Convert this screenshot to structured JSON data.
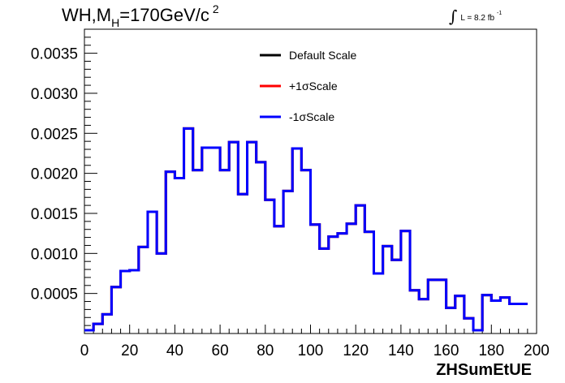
{
  "chart_data": {
    "type": "line",
    "title_main": "WH,M",
    "title_sub": "H",
    "title_rest": "=170GeV/c",
    "title_sup": "2",
    "lumi_prefix": "L = 8.2 fb",
    "lumi_sup": "-1",
    "xlabel": "ZHSumEtUE",
    "xlim": [
      0,
      200
    ],
    "ylim": [
      0,
      0.0038
    ],
    "x_ticks": [
      0,
      20,
      40,
      60,
      80,
      100,
      120,
      140,
      160,
      180,
      200
    ],
    "y_ticks": [
      0.0005,
      0.001,
      0.0015,
      0.002,
      0.0025,
      0.003,
      0.0035
    ],
    "x_tick_labels": [
      "0",
      "20",
      "40",
      "60",
      "80",
      "100",
      "120",
      "140",
      "160",
      "180",
      "200"
    ],
    "y_tick_labels": [
      "0.0005",
      "0.0010",
      "0.0015",
      "0.0020",
      "0.0025",
      "0.0030",
      "0.0035"
    ],
    "bin_width": 4,
    "bin_edges_start": 0,
    "series": [
      {
        "name": "Default Scale",
        "color": "#000000",
        "values": [
          4e-05,
          0.00012,
          0.00024,
          0.00058,
          0.00078,
          0.00079,
          0.00108,
          0.00152,
          0.001,
          0.00202,
          0.00194,
          0.00256,
          0.00204,
          0.00232,
          0.00232,
          0.00204,
          0.00239,
          0.00174,
          0.00239,
          0.00214,
          0.00167,
          0.00134,
          0.00178,
          0.00231,
          0.00204,
          0.00136,
          0.00106,
          0.00121,
          0.00125,
          0.00137,
          0.0016,
          0.00127,
          0.00075,
          0.00109,
          0.00092,
          0.00128,
          0.00054,
          0.00043,
          0.00067,
          0.00067,
          0.00032,
          0.00047,
          0.00019,
          4e-05,
          0.00048,
          0.00041,
          0.00045,
          0.00037,
          0.00037
        ]
      },
      {
        "name": "+1σScale",
        "color": "#ff0000",
        "values": [
          4e-05,
          0.00012,
          0.00024,
          0.00058,
          0.00078,
          0.00079,
          0.00108,
          0.00152,
          0.001,
          0.00202,
          0.00194,
          0.00256,
          0.00204,
          0.00232,
          0.00232,
          0.00204,
          0.00239,
          0.00174,
          0.00239,
          0.00214,
          0.00167,
          0.00134,
          0.00178,
          0.00231,
          0.00204,
          0.00136,
          0.00106,
          0.00121,
          0.00125,
          0.00137,
          0.0016,
          0.00127,
          0.00075,
          0.00109,
          0.00092,
          0.00128,
          0.00054,
          0.00043,
          0.00067,
          0.00067,
          0.00032,
          0.00047,
          0.00019,
          4e-05,
          0.00048,
          0.00041,
          0.00045,
          0.00037,
          0.00037
        ]
      },
      {
        "name": "-1σScale",
        "color": "#0000ff",
        "values": [
          4e-05,
          0.00012,
          0.00024,
          0.00058,
          0.00078,
          0.00079,
          0.00108,
          0.00152,
          0.001,
          0.00202,
          0.00194,
          0.00256,
          0.00204,
          0.00232,
          0.00232,
          0.00204,
          0.00239,
          0.00174,
          0.00239,
          0.00214,
          0.00167,
          0.00134,
          0.00178,
          0.00231,
          0.00204,
          0.00136,
          0.00106,
          0.00121,
          0.00125,
          0.00137,
          0.0016,
          0.00127,
          0.00075,
          0.00109,
          0.00092,
          0.00128,
          0.00054,
          0.00043,
          0.00067,
          0.00067,
          0.00032,
          0.00047,
          0.00019,
          4e-05,
          0.00048,
          0.00041,
          0.00045,
          0.00037,
          0.00037
        ]
      }
    ],
    "legend_position": "top-center",
    "grid": false
  }
}
